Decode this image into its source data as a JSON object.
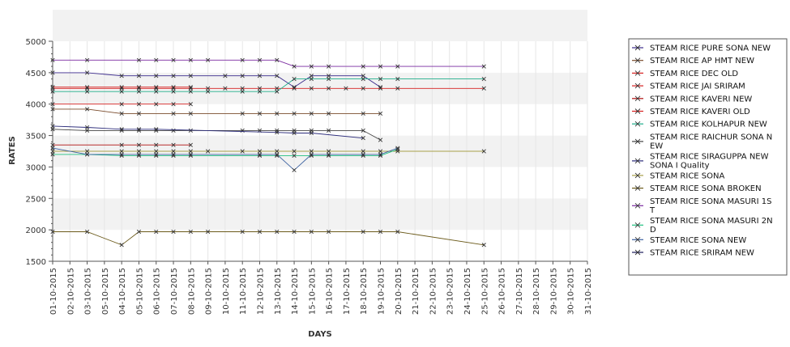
{
  "chart_data": {
    "type": "line",
    "title": "",
    "xlabel": "DAYS",
    "ylabel": "RATES",
    "ylim": [
      1500,
      5000
    ],
    "yticks": [
      "1500",
      "2000",
      "2500",
      "3000",
      "3500",
      "4000",
      "4500",
      "5000"
    ],
    "categories": [
      "01-10-2015",
      "02-10-2015",
      "03-10-2015",
      "05-10-2015",
      "04-10-2015",
      "05-10-2015",
      "06-10-2015",
      "07-10-2015",
      "08-10-2015",
      "09-10-2015",
      "10-10-2015",
      "11-10-2015",
      "12-10-2015",
      "13-10-2015",
      "14-10-2015",
      "15-10-2015",
      "16-10-2015",
      "17-10-2015",
      "18-10-2015",
      "19-10-2015",
      "20-10-2015",
      "21-10-2015",
      "22-10-2015",
      "23-10-2015",
      "24-10-2015",
      "25-10-2015",
      "26-10-2015",
      "27-10-2015",
      "28-10-2015",
      "29-10-2015",
      "30-10-2015",
      "31-10-2015"
    ],
    "grid": "alternating horizontal bands",
    "legend_position": "right",
    "series": [
      {
        "name": "STEAM RICE PURE SONA NEW",
        "color": "#3b2a8c",
        "points": [
          [
            0,
            4500
          ],
          [
            2,
            4500
          ],
          [
            4,
            4450
          ],
          [
            5,
            4450
          ],
          [
            6,
            4450
          ],
          [
            7,
            4450
          ],
          [
            8,
            4450
          ],
          [
            10,
            4450
          ],
          [
            11,
            4450
          ],
          [
            12,
            4450
          ],
          [
            13,
            4450
          ],
          [
            14,
            4270
          ],
          [
            15,
            4450
          ],
          [
            16,
            4450
          ],
          [
            18,
            4450
          ],
          [
            19,
            4270
          ]
        ]
      },
      {
        "name": "STEAM RICE AP HMT NEW",
        "color": "#7a4b2b",
        "points": [
          [
            0,
            3920
          ],
          [
            2,
            3920
          ],
          [
            4,
            3850
          ],
          [
            5,
            3850
          ],
          [
            7,
            3850
          ],
          [
            8,
            3850
          ],
          [
            11,
            3850
          ],
          [
            12,
            3850
          ],
          [
            13,
            3850
          ],
          [
            14,
            3850
          ],
          [
            15,
            3850
          ],
          [
            16,
            3850
          ],
          [
            18,
            3850
          ],
          [
            19,
            3850
          ]
        ]
      },
      {
        "name": "STEAM RICE DEC OLD",
        "color": "#d62020",
        "points": [
          [
            0,
            4000
          ],
          [
            4,
            4000
          ],
          [
            5,
            4000
          ],
          [
            6,
            4000
          ],
          [
            7,
            4000
          ],
          [
            8,
            4000
          ]
        ]
      },
      {
        "name": "STEAM RICE JAI SRIRAM",
        "color": "#d62020",
        "points": [
          [
            0,
            4250
          ],
          [
            2,
            4250
          ],
          [
            4,
            4250
          ],
          [
            5,
            4250
          ],
          [
            6,
            4250
          ],
          [
            7,
            4250
          ],
          [
            8,
            4250
          ],
          [
            9,
            4250
          ],
          [
            10,
            4250
          ],
          [
            11,
            4250
          ],
          [
            12,
            4250
          ],
          [
            13,
            4250
          ],
          [
            14,
            4250
          ],
          [
            15,
            4250
          ],
          [
            16,
            4250
          ],
          [
            17,
            4250
          ],
          [
            18,
            4250
          ],
          [
            19,
            4250
          ],
          [
            20,
            4250
          ],
          [
            25,
            4250
          ]
        ]
      },
      {
        "name": "STEAM RICE KAVERI NEW",
        "color": "#b01010",
        "points": [
          [
            0,
            3350
          ],
          [
            4,
            3350
          ],
          [
            5,
            3350
          ],
          [
            6,
            3350
          ],
          [
            7,
            3350
          ],
          [
            8,
            3350
          ]
        ]
      },
      {
        "name": "STEAM RICE KAVERI OLD",
        "color": "#d62020",
        "points": [
          [
            0,
            4270
          ],
          [
            2,
            4270
          ],
          [
            4,
            4270
          ],
          [
            5,
            4270
          ],
          [
            6,
            4270
          ],
          [
            7,
            4270
          ],
          [
            8,
            4270
          ]
        ]
      },
      {
        "name": "STEAM RICE KOLHAPUR NEW",
        "color": "#1fae8a",
        "points": [
          [
            0,
            4200
          ],
          [
            2,
            4200
          ],
          [
            4,
            4200
          ],
          [
            5,
            4200
          ],
          [
            6,
            4200
          ],
          [
            7,
            4200
          ],
          [
            8,
            4200
          ],
          [
            9,
            4200
          ],
          [
            11,
            4200
          ],
          [
            12,
            4200
          ],
          [
            13,
            4200
          ],
          [
            14,
            4400
          ],
          [
            15,
            4400
          ],
          [
            16,
            4400
          ],
          [
            18,
            4400
          ],
          [
            19,
            4400
          ],
          [
            20,
            4400
          ],
          [
            25,
            4400
          ]
        ]
      },
      {
        "name": "STEAM RICE RAICHUR SONA NEW",
        "color": "#444444",
        "points": [
          [
            0,
            3600
          ],
          [
            2,
            3580
          ],
          [
            4,
            3580
          ],
          [
            5,
            3580
          ],
          [
            6,
            3580
          ],
          [
            7,
            3580
          ],
          [
            8,
            3580
          ],
          [
            11,
            3580
          ],
          [
            12,
            3580
          ],
          [
            13,
            3580
          ],
          [
            14,
            3580
          ],
          [
            15,
            3580
          ],
          [
            16,
            3580
          ],
          [
            18,
            3580
          ],
          [
            19,
            3430
          ]
        ]
      },
      {
        "name": "STEAM RICE SIRAGUPPA NEW SONA I Quality",
        "color": "#2a2a7a",
        "points": [
          [
            0,
            3650
          ],
          [
            2,
            3630
          ],
          [
            4,
            3600
          ],
          [
            5,
            3600
          ],
          [
            6,
            3600
          ],
          [
            13,
            3550
          ],
          [
            14,
            3540
          ],
          [
            15,
            3540
          ],
          [
            18,
            3460
          ]
        ]
      },
      {
        "name": "STEAM RICE SONA",
        "color": "#a8a04a",
        "points": [
          [
            0,
            3250
          ],
          [
            2,
            3250
          ],
          [
            4,
            3250
          ],
          [
            5,
            3250
          ],
          [
            6,
            3250
          ],
          [
            7,
            3250
          ],
          [
            8,
            3250
          ],
          [
            9,
            3250
          ],
          [
            11,
            3250
          ],
          [
            12,
            3250
          ],
          [
            13,
            3250
          ],
          [
            14,
            3250
          ],
          [
            15,
            3250
          ],
          [
            16,
            3250
          ],
          [
            18,
            3250
          ],
          [
            19,
            3250
          ],
          [
            20,
            3250
          ],
          [
            25,
            3250
          ]
        ]
      },
      {
        "name": "STEAM RICE SONA BROKEN",
        "color": "#6b5a1a",
        "points": [
          [
            0,
            1970
          ],
          [
            2,
            1970
          ],
          [
            4,
            1760
          ],
          [
            5,
            1970
          ],
          [
            6,
            1970
          ],
          [
            7,
            1970
          ],
          [
            8,
            1970
          ],
          [
            9,
            1970
          ],
          [
            11,
            1970
          ],
          [
            12,
            1970
          ],
          [
            13,
            1970
          ],
          [
            14,
            1970
          ],
          [
            15,
            1970
          ],
          [
            16,
            1970
          ],
          [
            18,
            1970
          ],
          [
            19,
            1970
          ],
          [
            20,
            1970
          ],
          [
            25,
            1760
          ]
        ]
      },
      {
        "name": "STEAM RICE SONA MASURI 1ST",
        "color": "#7a2aa0",
        "points": [
          [
            0,
            4700
          ],
          [
            2,
            4700
          ],
          [
            5,
            4700
          ],
          [
            6,
            4700
          ],
          [
            7,
            4700
          ],
          [
            8,
            4700
          ],
          [
            9,
            4700
          ],
          [
            11,
            4700
          ],
          [
            12,
            4700
          ],
          [
            13,
            4700
          ],
          [
            14,
            4600
          ],
          [
            15,
            4600
          ],
          [
            16,
            4600
          ],
          [
            18,
            4600
          ],
          [
            19,
            4600
          ],
          [
            20,
            4600
          ],
          [
            25,
            4600
          ]
        ]
      },
      {
        "name": "STEAM RICE SONA MASURI 2ND",
        "color": "#20c080",
        "points": [
          [
            0,
            3200
          ],
          [
            2,
            3200
          ],
          [
            4,
            3180
          ],
          [
            5,
            3180
          ],
          [
            6,
            3180
          ],
          [
            7,
            3180
          ],
          [
            8,
            3180
          ],
          [
            12,
            3180
          ],
          [
            13,
            3180
          ],
          [
            14,
            3180
          ],
          [
            15,
            3180
          ],
          [
            16,
            3180
          ],
          [
            18,
            3180
          ],
          [
            19,
            3180
          ],
          [
            20,
            3280
          ]
        ]
      },
      {
        "name": "STEAM RICE SONA NEW",
        "color": "#3a60a0",
        "points": [
          [
            0,
            3300
          ],
          [
            2,
            3200
          ],
          [
            4,
            3200
          ],
          [
            5,
            3200
          ],
          [
            6,
            3200
          ],
          [
            7,
            3200
          ],
          [
            8,
            3200
          ],
          [
            12,
            3200
          ],
          [
            13,
            3200
          ],
          [
            14,
            2950
          ],
          [
            15,
            3200
          ],
          [
            16,
            3200
          ],
          [
            18,
            3200
          ],
          [
            19,
            3200
          ],
          [
            20,
            3300
          ]
        ]
      },
      {
        "name": "STEAM RICE SRIRAM NEW",
        "color": "#1a1a5a",
        "points": []
      }
    ]
  },
  "legend": {
    "items": [
      {
        "lines": [
          " STEAM RICE PURE SONA NEW"
        ],
        "color": "#3b2a8c"
      },
      {
        "lines": [
          "STEAM RICE AP HMT NEW"
        ],
        "color": "#7a4b2b"
      },
      {
        "lines": [
          "STEAM RICE DEC OLD"
        ],
        "color": "#d62020"
      },
      {
        "lines": [
          "STEAM RICE JAI SRIRAM"
        ],
        "color": "#d62020"
      },
      {
        "lines": [
          "STEAM RICE KAVERI NEW"
        ],
        "color": "#b01010"
      },
      {
        "lines": [
          "STEAM RICE KAVERI OLD"
        ],
        "color": "#d62020"
      },
      {
        "lines": [
          "STEAM RICE KOLHAPUR NEW"
        ],
        "color": "#1fae8a"
      },
      {
        "lines": [
          "STEAM RICE RAICHUR SONA N",
          "EW"
        ],
        "color": "#444444"
      },
      {
        "lines": [
          "STEAM RICE SIRAGUPPA NEW",
          "SONA I Quality"
        ],
        "color": "#2a2a7a"
      },
      {
        "lines": [
          "STEAM RICE SONA"
        ],
        "color": "#a8a04a"
      },
      {
        "lines": [
          "STEAM RICE SONA BROKEN"
        ],
        "color": "#6b5a1a"
      },
      {
        "lines": [
          "STEAM RICE SONA MASURI 1S",
          "T"
        ],
        "color": "#7a2aa0"
      },
      {
        "lines": [
          "STEAM RICE SONA MASURI 2N",
          "D"
        ],
        "color": "#20c080"
      },
      {
        "lines": [
          "STEAM RICE SONA NEW"
        ],
        "color": "#3a60a0"
      },
      {
        "lines": [
          "STEAM RICE SRIRAM NEW"
        ],
        "color": "#1a1a5a"
      }
    ]
  }
}
